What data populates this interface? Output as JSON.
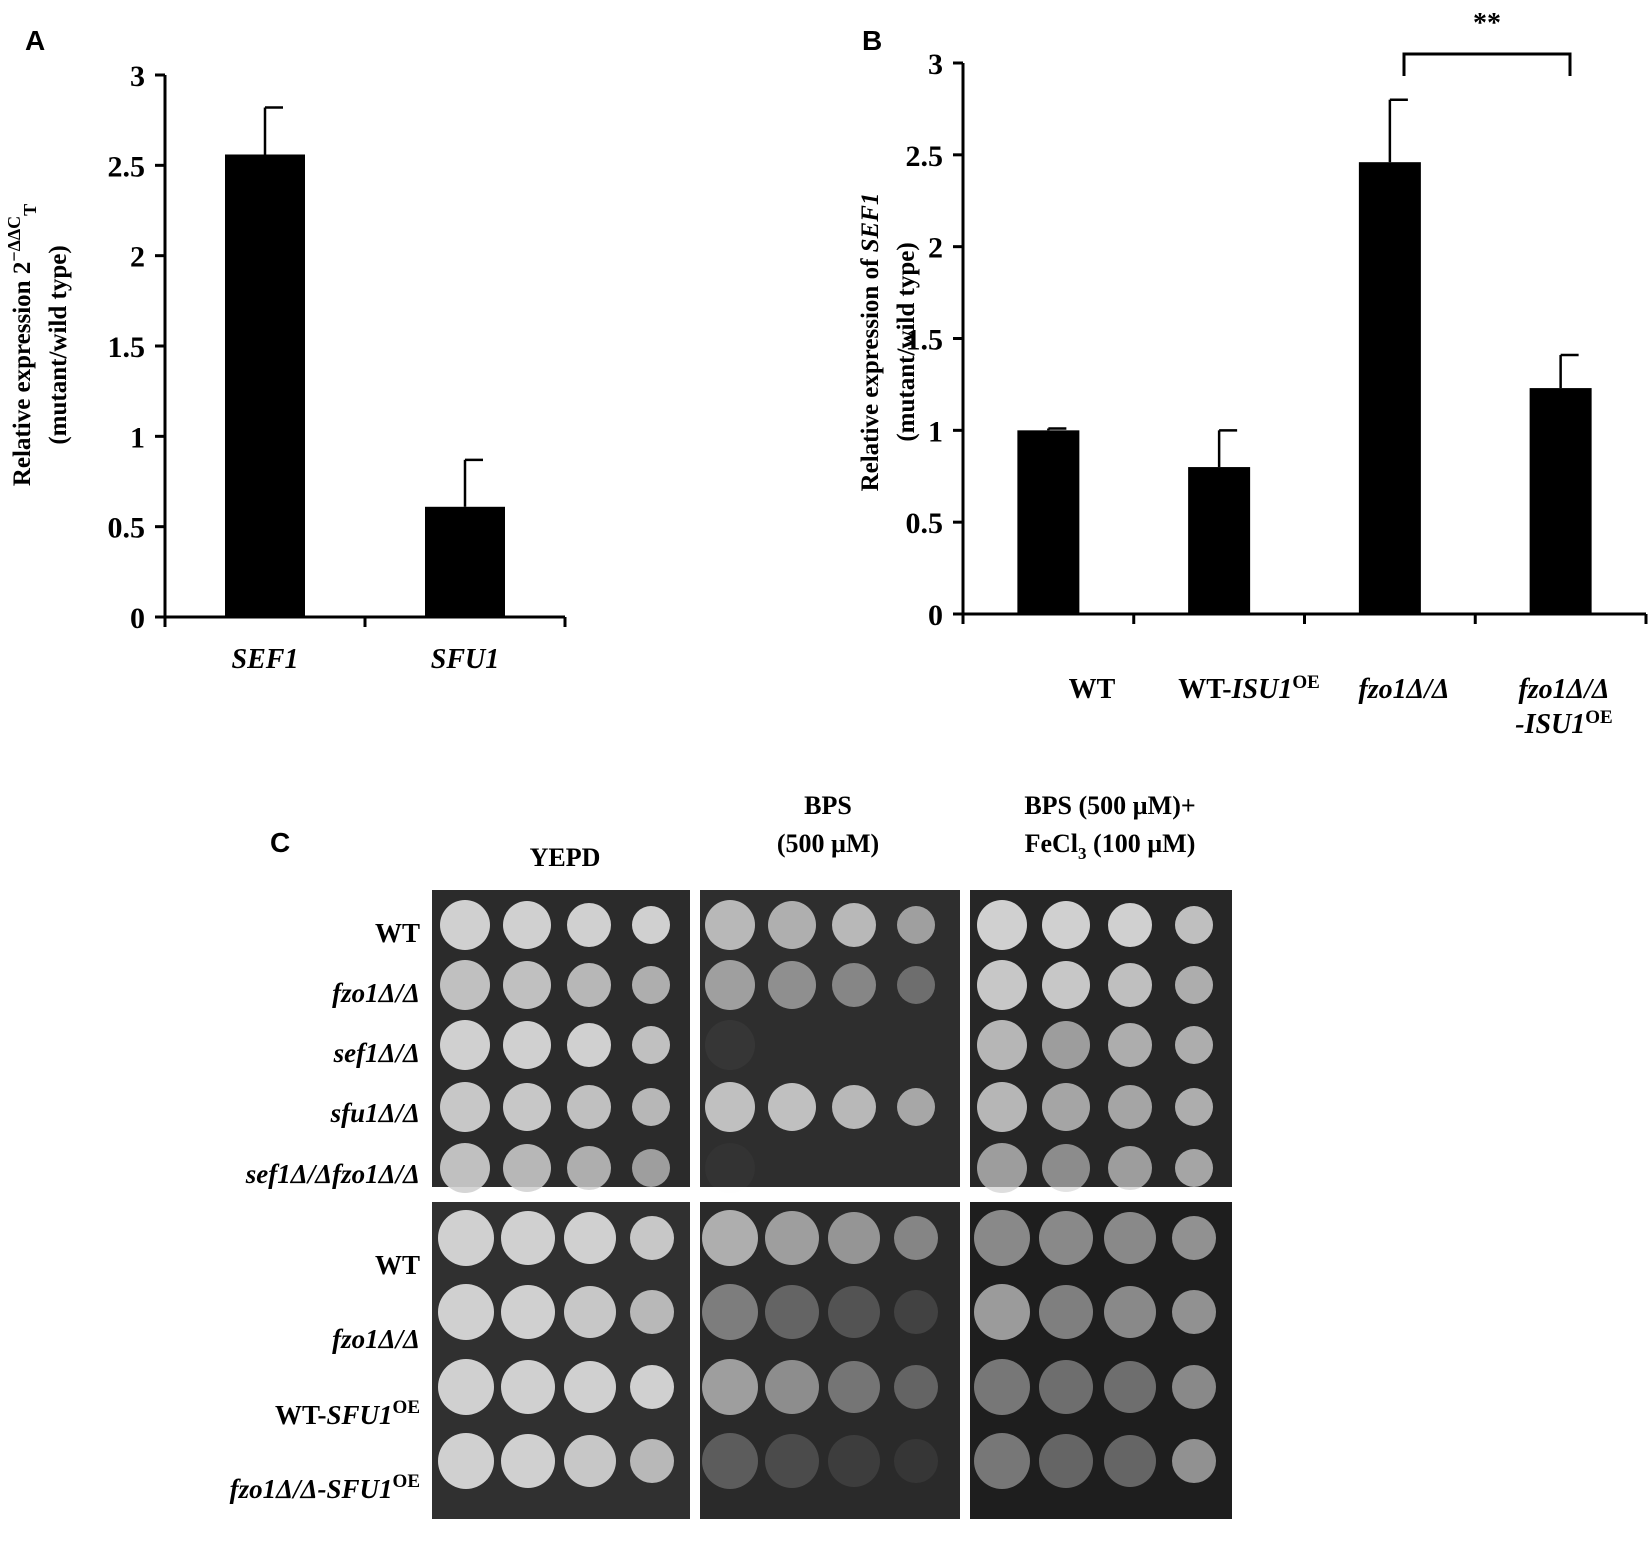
{
  "panel_a": {
    "letter": "A",
    "ylabel_line1": "Relative expression 2",
    "ylabel_sup": "−ΔΔC",
    "ylabel_sub": "T",
    "ylabel_line2": "(mutant/wild type)"
  },
  "panel_b": {
    "letter": "B",
    "ylabel_line1_prefix": "Relative expression of ",
    "ylabel_line1_gene": "SEF1",
    "ylabel_line2": "(mutant/wild type)",
    "significance": "**",
    "cat_labels": [
      {
        "main": "WT",
        "italic": "",
        "sup": ""
      },
      {
        "main": "WT-",
        "italic": "ISU1",
        "sup": "OE"
      },
      {
        "main": "",
        "italic": "fzo1Δ/Δ",
        "sup": ""
      },
      {
        "main": "",
        "italic": "fzo1Δ/Δ",
        "sup": "",
        "line2_italic": "-ISU1",
        "line2_sup": "OE"
      }
    ]
  },
  "chart_data": [
    {
      "type": "bar",
      "title": "",
      "categories": [
        "SEF1",
        "SFU1"
      ],
      "values": [
        2.56,
        0.61
      ],
      "errors": [
        0.26,
        0.26
      ],
      "ylim": [
        0,
        3
      ],
      "yticks": [
        "0",
        "0.5",
        "1",
        "1.5",
        "2",
        "2.5",
        "3"
      ],
      "xlabel": "",
      "ylabel": "Relative expression 2−ΔΔCT (mutant/wild type)",
      "grid": false,
      "legend": "none"
    },
    {
      "type": "bar",
      "title": "",
      "categories": [
        "WT",
        "WT-ISU1OE",
        "fzo1Δ/Δ",
        "fzo1Δ/Δ-ISU1OE"
      ],
      "values": [
        1.0,
        0.8,
        2.46,
        1.23
      ],
      "errors": [
        0.01,
        0.2,
        0.34,
        0.18
      ],
      "ylim": [
        0,
        3
      ],
      "yticks": [
        "0",
        "0.5",
        "1",
        "1.5",
        "2",
        "2.5",
        "3"
      ],
      "xlabel": "",
      "ylabel": "Relative expression of SEF1 (mutant/wild type)",
      "grid": false,
      "legend": "none",
      "annotations": [
        {
          "text": "**",
          "between": [
            "fzo1Δ/Δ",
            "fzo1Δ/Δ-ISU1OE"
          ]
        }
      ]
    }
  ],
  "panel_c": {
    "letter": "C",
    "conditions": [
      {
        "line1": "YEPD",
        "line2": ""
      },
      {
        "line1": "BPS",
        "line2": "(500 µM)"
      },
      {
        "line1": "BPS (500 µM)+",
        "line2_pre": "FeCl",
        "line2_sub": "3",
        "line2_post": " (100 µM)"
      }
    ],
    "block1_strains": [
      {
        "normal": "WT",
        "italic": "",
        "sup": ""
      },
      {
        "normal": "",
        "italic": "fzo1Δ/Δ",
        "sup": ""
      },
      {
        "normal": "",
        "italic": "sef1Δ/Δ",
        "sup": ""
      },
      {
        "normal": "",
        "italic": "sfu1Δ/Δ",
        "sup": ""
      },
      {
        "normal": "",
        "italic": "sef1Δ/Δfzo1Δ/Δ",
        "sup": ""
      }
    ],
    "block2_strains": [
      {
        "normal": "WT",
        "italic": "",
        "sup": ""
      },
      {
        "normal": "",
        "italic": "fzo1Δ/Δ",
        "sup": ""
      },
      {
        "normal": "WT-",
        "italic": "SFU1",
        "sup": "OE"
      },
      {
        "normal": "",
        "italic": "fzo1Δ/Δ-SFU1",
        "sup": "OE"
      }
    ]
  },
  "colors": {
    "bar": "#000000",
    "plate_bg": "#2b2b2b",
    "colony": "#c8c8c8"
  }
}
